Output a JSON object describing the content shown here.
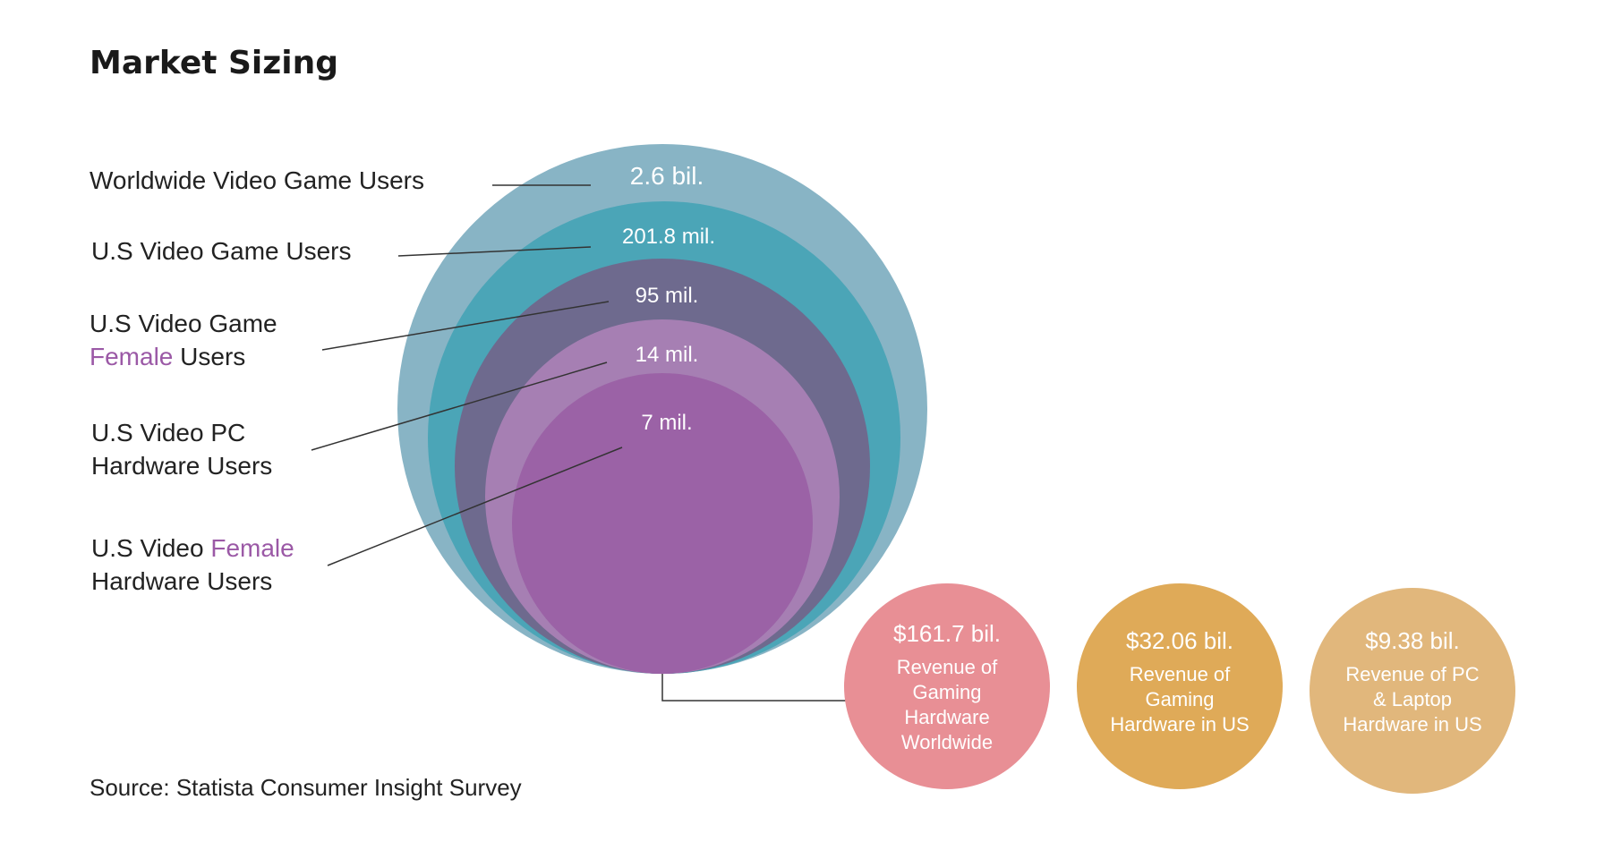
{
  "chart_data": {
    "type": "nested-bubble",
    "title": "Market Sizing",
    "source": "Source: Statista Consumer Insight Survey",
    "accent_word": "Female",
    "accent_color": "#9b59a6",
    "circles": [
      {
        "label_lines": [
          "Worldwide Video Game Users"
        ],
        "value": "2.6 bil.",
        "color": "#88b4c5"
      },
      {
        "label_lines": [
          "U.S Video Game Users"
        ],
        "value": "201.8 mil.",
        "color": "#4ba5b7"
      },
      {
        "label_lines": [
          "U.S Video Game",
          "Female Users"
        ],
        "value": "95 mil.",
        "color": "#6e6a8e"
      },
      {
        "label_lines": [
          "U.S Video PC",
          "Hardware Users"
        ],
        "value": "14 mil.",
        "color": "#a67fb3"
      },
      {
        "label_lines": [
          "U.S Video Female",
          "Hardware Users"
        ],
        "value": "7 mil.",
        "color": "#9b62a6"
      }
    ],
    "revenue": [
      {
        "value": "$161.7 bil.",
        "desc_lines": [
          "Revenue of",
          "Gaming",
          "Hardware",
          "Worldwide"
        ],
        "color": "#e88f95"
      },
      {
        "value": "$32.06 bil.",
        "desc_lines": [
          "Revenue of",
          "Gaming",
          "Hardware in US"
        ],
        "color": "#dfaa58"
      },
      {
        "value": "$9.38 bil.",
        "desc_lines": [
          "Revenue of PC",
          "& Laptop",
          "Hardware in US"
        ],
        "color": "#e1b77c"
      }
    ]
  }
}
